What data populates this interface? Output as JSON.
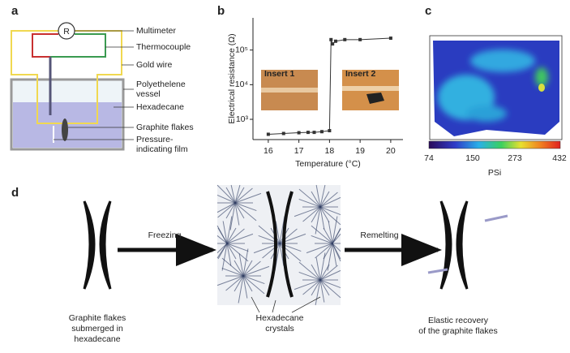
{
  "panel_a": {
    "letter": "a",
    "meter_symbol": "R",
    "labels": [
      [
        "Multimeter"
      ],
      [
        "Thermocouple"
      ],
      [
        "Gold wire"
      ],
      [
        "Polyethelene",
        "vessel"
      ],
      [
        "Hexadecane"
      ],
      [
        "Graphite flakes"
      ],
      [
        "Pressure-",
        "indicating film"
      ]
    ]
  },
  "panel_b": {
    "letter": "b"
  },
  "chart_data": {
    "type": "line",
    "x_label": "Temperature (°C)",
    "y_label": "Electrical resistance (Ω)",
    "annotations": [
      "Insert 1",
      "Insert 2"
    ],
    "x": [
      16,
      16.5,
      17,
      17.3,
      17.5,
      17.75,
      18,
      18.05,
      18.1,
      18.2,
      18.5,
      19,
      20
    ],
    "values": [
      370,
      390,
      410,
      420,
      420,
      440,
      470,
      200000,
      150000,
      180000,
      200000,
      200000,
      220000
    ],
    "color": "#333333",
    "log_y": true,
    "xlim": [
      15.5,
      20.4
    ],
    "ylim": [
      260,
      850000
    ],
    "xticks": [
      16,
      17,
      18,
      19,
      20
    ],
    "yticks": [
      {
        "value": 1000,
        "label": "10³"
      },
      {
        "value": 10000,
        "label": "10⁴"
      },
      {
        "value": 100000,
        "label": "10⁵"
      }
    ]
  },
  "panel_c": {
    "letter": "c",
    "colorbar_label": "PSi",
    "colorbar_ticks": [
      74,
      150,
      273,
      432
    ]
  },
  "panel_d": {
    "letter": "d",
    "arrows": [
      "Freezing",
      "Remelting"
    ],
    "captions": [
      [
        "Graphite flakes",
        "submerged in",
        "hexadecane"
      ],
      [
        "Hexadecane",
        "crystals"
      ],
      [
        "Elastic recovery",
        "of the graphite flakes"
      ]
    ]
  }
}
